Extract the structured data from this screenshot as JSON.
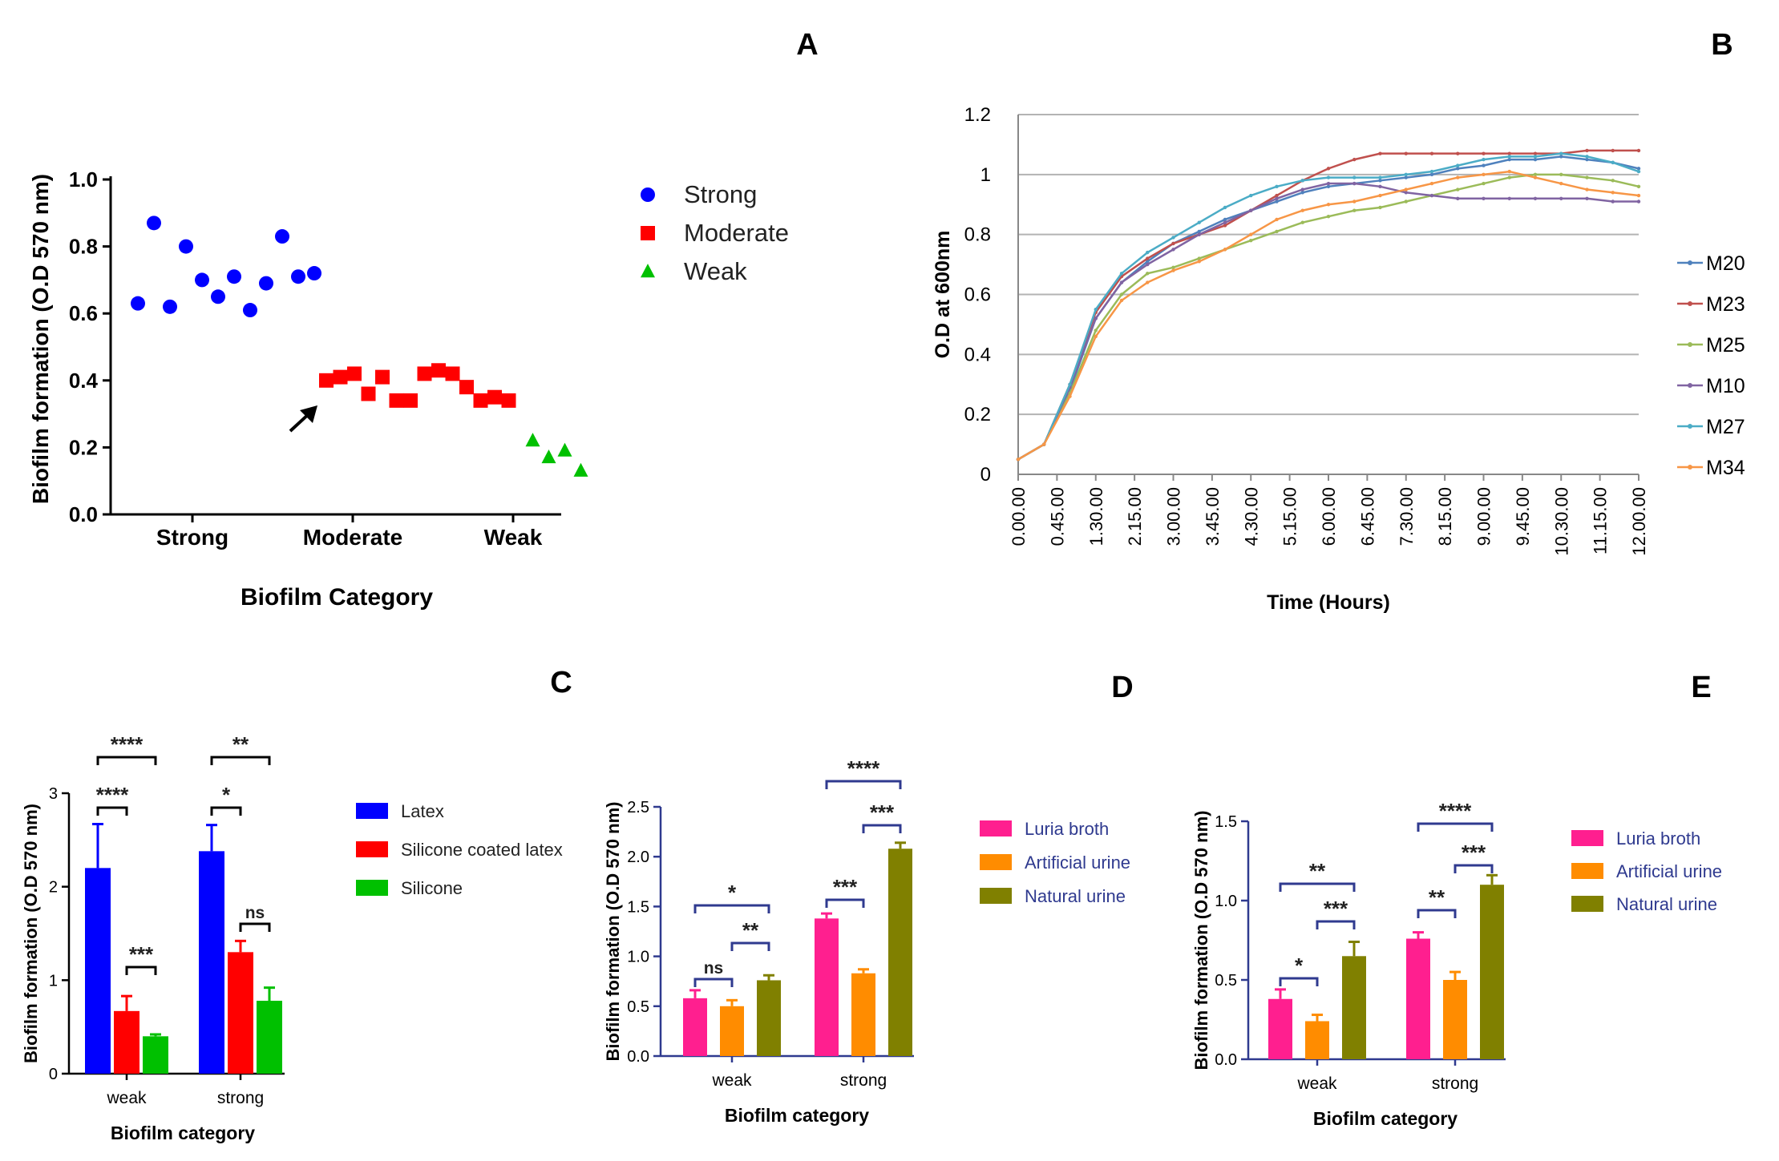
{
  "panel_letters": {
    "A": "A",
    "B": "B",
    "C": "C",
    "D": "D",
    "E": "E"
  },
  "chart_data": [
    {
      "panel": "A",
      "type": "scatter",
      "xlabel": "Biofilm Category",
      "ylabel": "Biofilm formation (O.D 570 nm)",
      "ylim": [
        0.0,
        1.0
      ],
      "yticks": [
        "0.0",
        "0.2",
        "0.4",
        "0.6",
        "0.8",
        "1.0"
      ],
      "categories": [
        "Strong",
        "Moderate",
        "Weak"
      ],
      "legend": [
        {
          "label": "Strong",
          "color": "#0000ff",
          "marker": "circle"
        },
        {
          "label": "Moderate",
          "color": "#ff0000",
          "marker": "square"
        },
        {
          "label": "Weak",
          "color": "#00c000",
          "marker": "triangle"
        }
      ],
      "series": [
        {
          "name": "Strong",
          "x": [
            0.12,
            0.2,
            0.28,
            0.36,
            0.44,
            0.52,
            0.6,
            0.68,
            0.76,
            0.84,
            0.92,
            1.0
          ],
          "y": [
            0.63,
            0.87,
            0.62,
            0.8,
            0.7,
            0.65,
            0.71,
            0.61,
            0.69,
            0.83,
            0.71,
            0.72
          ]
        },
        {
          "name": "Moderate",
          "x": [
            1.06,
            1.13,
            1.2,
            1.27,
            1.34,
            1.41,
            1.48,
            1.55,
            1.62,
            1.69,
            1.76,
            1.83,
            1.9,
            1.97
          ],
          "y": [
            0.4,
            0.41,
            0.42,
            0.36,
            0.41,
            0.34,
            0.34,
            0.42,
            0.43,
            0.42,
            0.38,
            0.34,
            0.35,
            0.34
          ]
        },
        {
          "name": "Weak",
          "x": [
            2.09,
            2.17,
            2.25,
            2.33
          ],
          "y": [
            0.22,
            0.17,
            0.19,
            0.13
          ]
        }
      ],
      "annotation": "arrow pointing to a Moderate isolate"
    },
    {
      "panel": "B",
      "type": "line",
      "xlabel": "Time (Hours)",
      "ylabel": "O.D at 600nm",
      "ylim": [
        0,
        1.2
      ],
      "yticks": [
        "0",
        "0.2",
        "0.4",
        "0.6",
        "0.8",
        "1",
        "1.2"
      ],
      "xticks": [
        "0.00.00",
        "0.45.00",
        "1.30.00",
        "2.15.00",
        "3.00.00",
        "3.45.00",
        "4.30.00",
        "5.15.00",
        "6.00.00",
        "6.45.00",
        "7.30.00",
        "8.15.00",
        "9.00.00",
        "9.45.00",
        "10.30.00",
        "11.15.00",
        "12.00.00"
      ],
      "x_hours": [
        0,
        0.5,
        1,
        1.5,
        2,
        2.5,
        3,
        3.5,
        4,
        4.5,
        5,
        5.5,
        6,
        6.5,
        7,
        7.5,
        8,
        8.5,
        9,
        9.5,
        10,
        10.5,
        11,
        11.5,
        12
      ],
      "series": [
        {
          "name": "M20",
          "color": "#4f81bd",
          "values": [
            0.05,
            0.1,
            0.28,
            0.52,
            0.64,
            0.71,
            0.77,
            0.81,
            0.85,
            0.88,
            0.91,
            0.94,
            0.96,
            0.97,
            0.98,
            0.99,
            1.0,
            1.02,
            1.03,
            1.05,
            1.05,
            1.06,
            1.05,
            1.04,
            1.02
          ]
        },
        {
          "name": "M23",
          "color": "#c0504d",
          "values": [
            0.05,
            0.1,
            0.3,
            0.54,
            0.66,
            0.72,
            0.77,
            0.8,
            0.83,
            0.88,
            0.93,
            0.98,
            1.02,
            1.05,
            1.07,
            1.07,
            1.07,
            1.07,
            1.07,
            1.07,
            1.07,
            1.07,
            1.08,
            1.08,
            1.08
          ]
        },
        {
          "name": "M25",
          "color": "#9bbb59",
          "values": [
            0.05,
            0.1,
            0.27,
            0.48,
            0.6,
            0.67,
            0.69,
            0.72,
            0.75,
            0.78,
            0.81,
            0.84,
            0.86,
            0.88,
            0.89,
            0.91,
            0.93,
            0.95,
            0.97,
            0.99,
            1.0,
            1.0,
            0.99,
            0.98,
            0.96
          ]
        },
        {
          "name": "M10",
          "color": "#8064a2",
          "values": [
            0.05,
            0.1,
            0.29,
            0.52,
            0.64,
            0.7,
            0.75,
            0.8,
            0.84,
            0.88,
            0.92,
            0.95,
            0.97,
            0.97,
            0.96,
            0.94,
            0.93,
            0.92,
            0.92,
            0.92,
            0.92,
            0.92,
            0.92,
            0.91,
            0.91
          ]
        },
        {
          "name": "M27",
          "color": "#4bacc6",
          "values": [
            0.05,
            0.1,
            0.3,
            0.55,
            0.67,
            0.74,
            0.79,
            0.84,
            0.89,
            0.93,
            0.96,
            0.98,
            0.99,
            0.99,
            0.99,
            1.0,
            1.01,
            1.03,
            1.05,
            1.06,
            1.06,
            1.07,
            1.06,
            1.04,
            1.01
          ]
        },
        {
          "name": "M34",
          "color": "#f79646",
          "values": [
            0.05,
            0.1,
            0.26,
            0.46,
            0.58,
            0.64,
            0.68,
            0.71,
            0.75,
            0.8,
            0.85,
            0.88,
            0.9,
            0.91,
            0.93,
            0.95,
            0.97,
            0.99,
            1.0,
            1.01,
            0.99,
            0.97,
            0.95,
            0.94,
            0.93
          ]
        }
      ]
    },
    {
      "panel": "C",
      "type": "bar",
      "xlabel": "Biofilm category",
      "ylabel": "Biofilm formation (O.D 570 nm)",
      "ylim": [
        0,
        3
      ],
      "yticks": [
        "0",
        "1",
        "2",
        "3"
      ],
      "categories": [
        "weak",
        "strong"
      ],
      "series": [
        {
          "name": "Latex",
          "color": "#0000ff",
          "values": [
            2.2,
            2.38
          ],
          "errors": [
            0.47,
            0.28
          ]
        },
        {
          "name": "Silicone coated latex",
          "color": "#ff0000",
          "values": [
            0.67,
            1.3
          ],
          "errors": [
            0.16,
            0.12
          ]
        },
        {
          "name": "Silicone",
          "color": "#00c000",
          "values": [
            0.4,
            0.78
          ],
          "errors": [
            0.02,
            0.14
          ]
        }
      ],
      "significance": [
        {
          "category": "weak",
          "from": "Latex",
          "to": "Silicone",
          "label": "****"
        },
        {
          "category": "weak",
          "from": "Latex",
          "to": "Silicone coated latex",
          "label": "****"
        },
        {
          "category": "weak",
          "from": "Silicone coated latex",
          "to": "Silicone",
          "label": "***"
        },
        {
          "category": "strong",
          "from": "Latex",
          "to": "Silicone",
          "label": "**"
        },
        {
          "category": "strong",
          "from": "Latex",
          "to": "Silicone coated latex",
          "label": "*"
        },
        {
          "category": "strong",
          "from": "Silicone coated latex",
          "to": "Silicone",
          "label": "ns"
        }
      ]
    },
    {
      "panel": "D",
      "type": "bar",
      "xlabel": "Biofilm category",
      "ylabel": "Biofilm formation (O.D 570 nm)",
      "ylim": [
        0,
        2.5
      ],
      "yticks": [
        "0.0",
        "0.5",
        "1.0",
        "1.5",
        "2.0",
        "2.5"
      ],
      "categories": [
        "weak",
        "strong"
      ],
      "series": [
        {
          "name": "Luria broth",
          "color": "#ff1f8f",
          "values": [
            0.58,
            1.38
          ],
          "errors": [
            0.08,
            0.05
          ]
        },
        {
          "name": "Artificial urine",
          "color": "#ff8c00",
          "values": [
            0.5,
            0.83
          ],
          "errors": [
            0.06,
            0.04
          ]
        },
        {
          "name": "Natural urine",
          "color": "#808000",
          "values": [
            0.76,
            2.08
          ],
          "errors": [
            0.05,
            0.06
          ]
        }
      ],
      "significance": [
        {
          "category": "weak",
          "from": "Luria broth",
          "to": "Natural urine",
          "label": "*"
        },
        {
          "category": "weak",
          "from": "Artificial urine",
          "to": "Natural urine",
          "label": "**"
        },
        {
          "category": "weak",
          "from": "Luria broth",
          "to": "Artificial urine",
          "label": "ns"
        },
        {
          "category": "strong",
          "from": "Luria broth",
          "to": "Natural urine",
          "label": "****"
        },
        {
          "category": "strong",
          "from": "Artificial urine",
          "to": "Natural urine",
          "label": "***"
        },
        {
          "category": "strong",
          "from": "Luria broth",
          "to": "Artificial urine",
          "label": "***"
        }
      ]
    },
    {
      "panel": "E",
      "type": "bar",
      "xlabel": "Biofilm category",
      "ylabel": "Biofilm formation (O.D 570 nm)",
      "ylim": [
        0,
        1.5
      ],
      "yticks": [
        "0.0",
        "0.5",
        "1.0",
        "1.5"
      ],
      "categories": [
        "weak",
        "strong"
      ],
      "series": [
        {
          "name": "Luria broth",
          "color": "#ff1f8f",
          "values": [
            0.38,
            0.76
          ],
          "errors": [
            0.06,
            0.04
          ]
        },
        {
          "name": "Artificial urine",
          "color": "#ff8c00",
          "values": [
            0.24,
            0.5
          ],
          "errors": [
            0.04,
            0.05
          ]
        },
        {
          "name": "Natural urine",
          "color": "#808000",
          "values": [
            0.65,
            1.1
          ],
          "errors": [
            0.09,
            0.06
          ]
        }
      ],
      "significance": [
        {
          "category": "weak",
          "from": "Luria broth",
          "to": "Natural urine",
          "label": "**"
        },
        {
          "category": "weak",
          "from": "Artificial urine",
          "to": "Natural urine",
          "label": "***"
        },
        {
          "category": "weak",
          "from": "Luria broth",
          "to": "Artificial urine",
          "label": "*"
        },
        {
          "category": "strong",
          "from": "Luria broth",
          "to": "Natural urine",
          "label": "****"
        },
        {
          "category": "strong",
          "from": "Artificial urine",
          "to": "Natural urine",
          "label": "***"
        },
        {
          "category": "strong",
          "from": "Luria broth",
          "to": "Artificial urine",
          "label": "**"
        }
      ]
    }
  ]
}
